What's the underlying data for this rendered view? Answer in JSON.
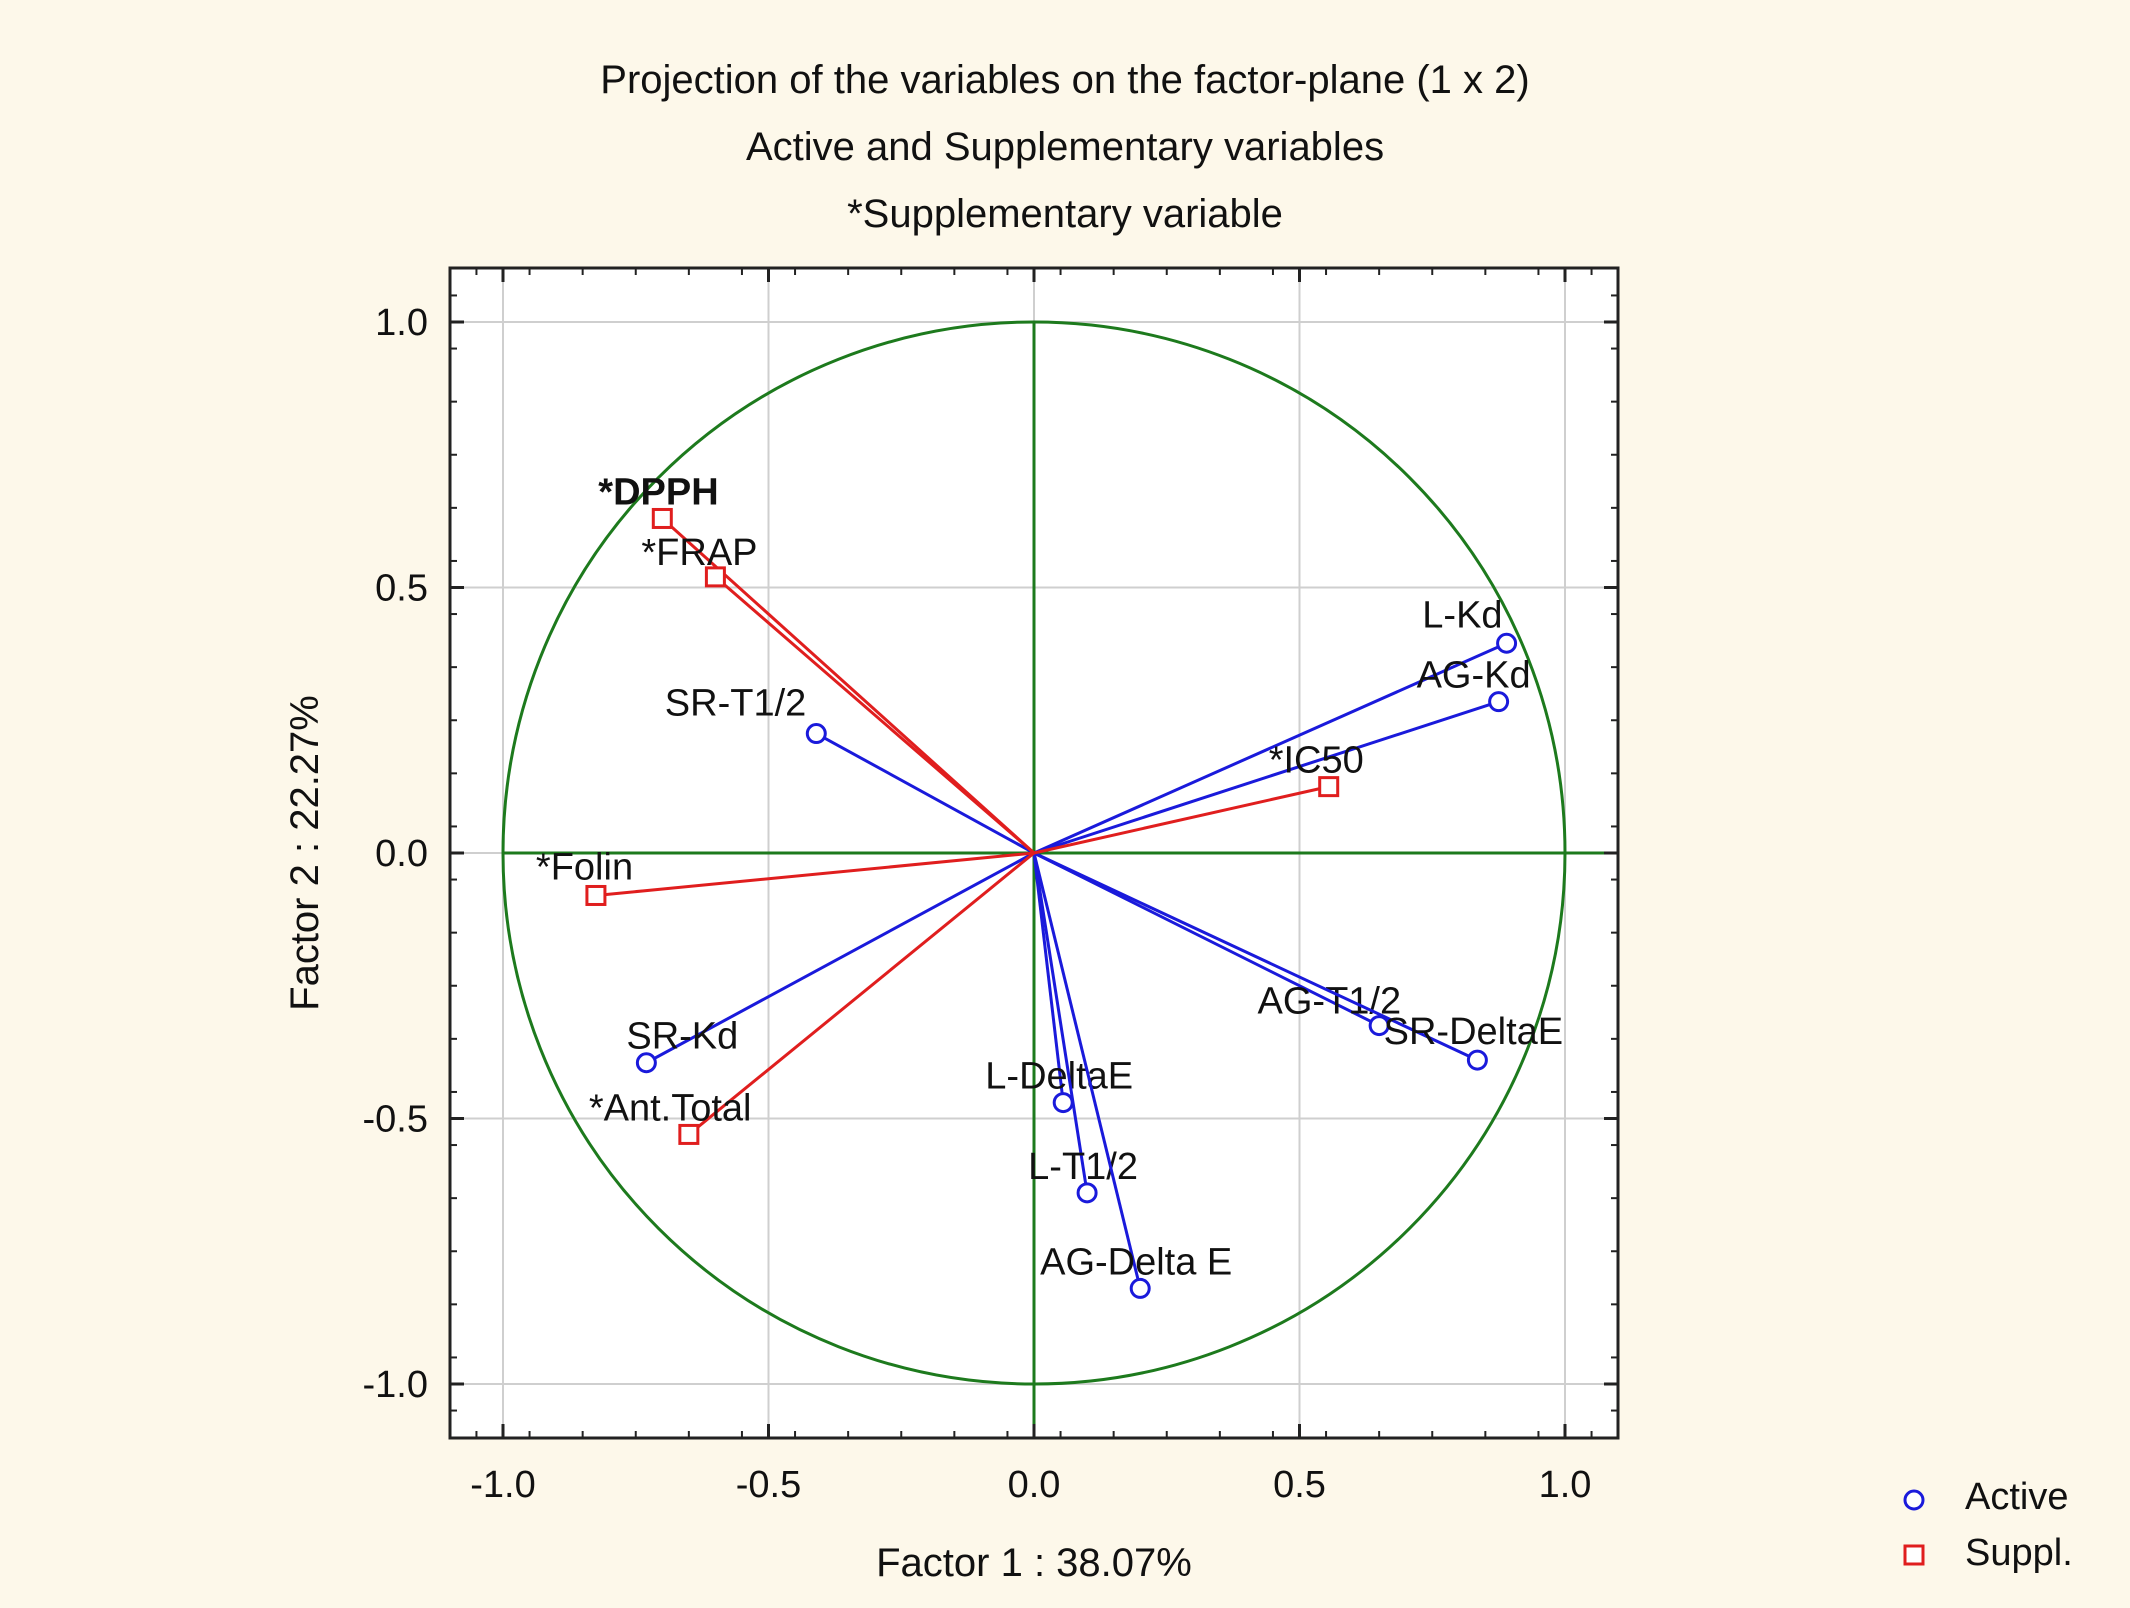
{
  "colors": {
    "background": "#fdf8ea",
    "active": "#1a1adb",
    "supplementary": "#e01e1e",
    "circle": "#1d7a1d",
    "grid": "#cfcfcf"
  },
  "chart_data": {
    "type": "scatter",
    "title_lines": [
      "Projection of the variables on the factor-plane (1 x 2)",
      "Active and Supplementary variables",
      "*Supplementary variable"
    ],
    "xlabel": "Factor 1 : 38.07%",
    "ylabel": "Factor 2 : 22.27%",
    "xlim": [
      -1.1,
      1.1
    ],
    "ylim": [
      -1.1,
      1.1
    ],
    "xticks": [
      -1.0,
      -0.5,
      0.0,
      0.5,
      1.0
    ],
    "yticks": [
      -1.0,
      -0.5,
      0.0,
      0.5,
      1.0
    ],
    "xtick_labels": [
      "-1.0",
      "-0.5",
      "0.0",
      "0.5",
      "1.0"
    ],
    "ytick_labels": [
      "-1.0",
      "-0.5",
      "0.0",
      "0.5",
      "1.0"
    ],
    "grid": true,
    "unit_circle": true,
    "legend_position": "bottom-right",
    "legend": [
      {
        "name": "Active",
        "marker": "circle"
      },
      {
        "name": "Suppl.",
        "marker": "square"
      }
    ],
    "series": [
      {
        "name": "Active",
        "marker": "circle",
        "points": [
          {
            "label": "L-Kd",
            "x": 0.89,
            "y": 0.395
          },
          {
            "label": "AG-Kd",
            "x": 0.875,
            "y": 0.285
          },
          {
            "label": "SR-T1/2",
            "x": -0.41,
            "y": 0.225
          },
          {
            "label": "AG-T1/2",
            "x": 0.65,
            "y": -0.325
          },
          {
            "label": "SR-DeltaE",
            "x": 0.835,
            "y": -0.39
          },
          {
            "label": "SR-Kd",
            "x": -0.73,
            "y": -0.395
          },
          {
            "label": "L-DeltaE",
            "x": 0.055,
            "y": -0.47
          },
          {
            "label": "L-T1/2",
            "x": 0.1,
            "y": -0.64
          },
          {
            "label": "AG-Delta E",
            "x": 0.2,
            "y": -0.82
          }
        ]
      },
      {
        "name": "Suppl.",
        "marker": "square",
        "points": [
          {
            "label": "*DPPH",
            "x": -0.7,
            "y": 0.63
          },
          {
            "label": "*FRAP",
            "x": -0.6,
            "y": 0.52
          },
          {
            "label": "*IC50",
            "x": 0.555,
            "y": 0.125
          },
          {
            "label": "*Folin",
            "x": -0.825,
            "y": -0.08
          },
          {
            "label": "*Ant.Total",
            "x": -0.65,
            "y": -0.53
          }
        ]
      }
    ]
  }
}
